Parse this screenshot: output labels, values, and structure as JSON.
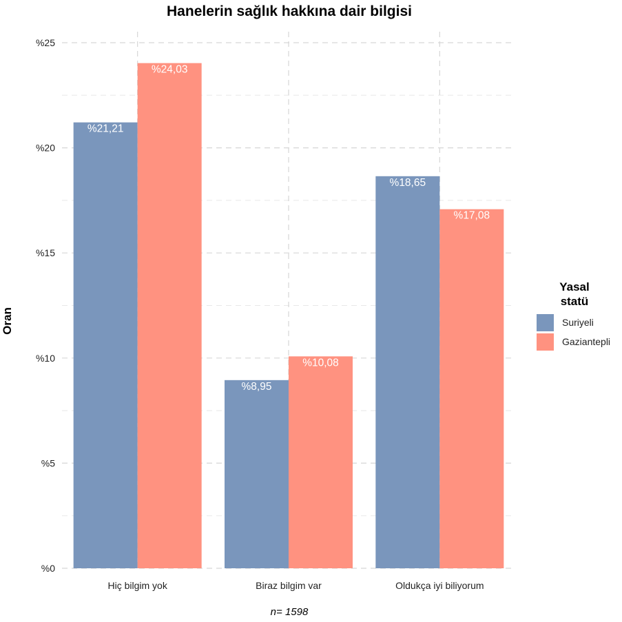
{
  "chart_data": {
    "type": "bar",
    "title": "Hanelerin sağlık hakkına dair bilgisi",
    "ylabel": "Oran",
    "xlabel": "",
    "caption": "n=  1598",
    "categories": [
      "Hiç bilgim yok",
      "Biraz bilgim var",
      "Oldukça iyi biliyorum"
    ],
    "series": [
      {
        "name": "Suriyeli",
        "color": "#7A96BC",
        "values": [
          21.21,
          8.95,
          18.65
        ],
        "labels": [
          "%21,21",
          "%8,95",
          "%18,65"
        ]
      },
      {
        "name": "Gaziantepli",
        "color": "#FF9280",
        "values": [
          24.03,
          10.08,
          17.08
        ],
        "labels": [
          "%24,03",
          "%10,08",
          "%17,08"
        ]
      }
    ],
    "ylim": [
      0,
      25
    ],
    "yticks": [
      0,
      5,
      10,
      15,
      20,
      25
    ],
    "ytick_labels": [
      "%0",
      "%5",
      "%10",
      "%15",
      "%20",
      "%25"
    ],
    "grid": true,
    "legend": {
      "title_lines": [
        "Yasal",
        "statü"
      ],
      "position": "right"
    }
  }
}
